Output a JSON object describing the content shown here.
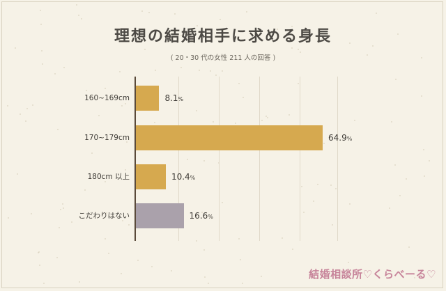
{
  "title": "理想の結婚相手に求める身長",
  "subtitle": "( 20・30 代の女性 211 人の回答 )",
  "logo": "結婚相談所♡くらべーる♡",
  "colors": {
    "background": "#f6f2e7",
    "bar": "#d6a94f",
    "bar_other": "#aaa1ab",
    "axis": "#5a4a3a",
    "grid": "#e0d9c9",
    "logo": "#c7849a"
  },
  "chart_data": {
    "type": "bar",
    "orientation": "horizontal",
    "title": "理想の結婚相手に求める身長",
    "subtitle": "( 20・30 代の女性 211 人の回答 )",
    "categories": [
      "160~169cm",
      "170~179cm",
      "180cm 以上",
      "こだわりはない"
    ],
    "values": [
      8.1,
      64.9,
      10.4,
      16.6
    ],
    "value_labels": [
      "8.1",
      "64.9",
      "10.4",
      "16.6"
    ],
    "unit": "%",
    "bar_colors": [
      "#d6a94f",
      "#d6a94f",
      "#d6a94f",
      "#aaa1ab"
    ],
    "xlim": [
      0,
      70
    ],
    "grid": true
  }
}
